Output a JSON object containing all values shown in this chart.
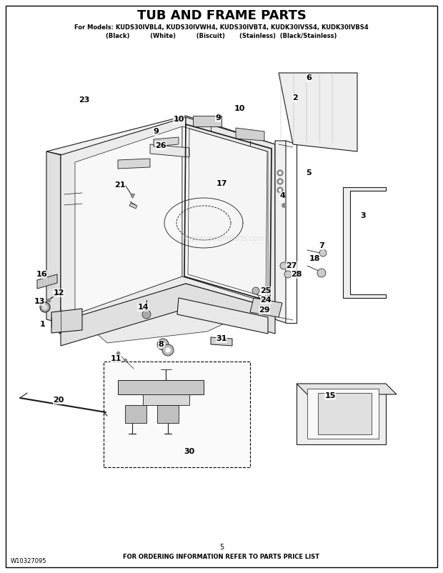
{
  "title": "TUB AND FRAME PARTS",
  "subtitle1": "For Models: KUDS30IVBL4, KUDS30IVWH4, KUDS30IVBT4, KUDK30IVSS4, KUDK30IVBS4",
  "subtitle2": "(Black)          (White)          (Biscuit)       (Stainless)  (Black/Stainless)",
  "footer_center": "FOR ORDERING INFORMATION REFER TO PARTS PRICE LIST",
  "footer_left": "W10327095",
  "footer_page": "5",
  "watermark": "eReplacementParts.com",
  "bg_color": "#ffffff",
  "line_color": "#1a1a1a",
  "fig_width": 6.2,
  "fig_height": 8.02,
  "dpi": 100
}
